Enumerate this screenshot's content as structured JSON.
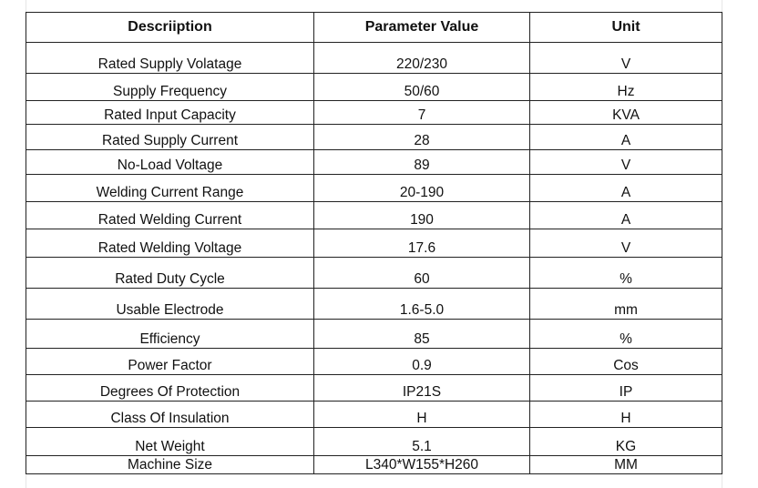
{
  "table": {
    "headers": [
      "Descriiption",
      "Parameter Value",
      "Unit"
    ],
    "rows": [
      [
        "Rated Supply Volatage",
        "220/230",
        "V"
      ],
      [
        "Supply Frequency",
        "50/60",
        "Hz"
      ],
      [
        "Rated Input Capacity",
        "7",
        "KVA"
      ],
      [
        "Rated Supply Current",
        "28",
        "A"
      ],
      [
        "No-Load Voltage",
        "89",
        "V"
      ],
      [
        "Welding Current Range",
        "20-190",
        "A"
      ],
      [
        "Rated Welding Current",
        "190",
        "A"
      ],
      [
        "Rated Welding Voltage",
        "17.6",
        "V"
      ],
      [
        "Rated Duty Cycle",
        "60",
        "%"
      ],
      [
        "Usable Electrode",
        "1.6-5.0",
        "mm"
      ],
      [
        "Efficiency",
        "85",
        "%"
      ],
      [
        "Power Factor",
        "0.9",
        "Cos"
      ],
      [
        "Degrees Of Protection",
        "IP21S",
        "IP"
      ],
      [
        "Class Of Insulation",
        "H",
        "H"
      ],
      [
        "Net Weight",
        "5.1",
        "KG"
      ],
      [
        "Machine Size",
        "L340*W155*H260",
        "MM"
      ]
    ]
  }
}
